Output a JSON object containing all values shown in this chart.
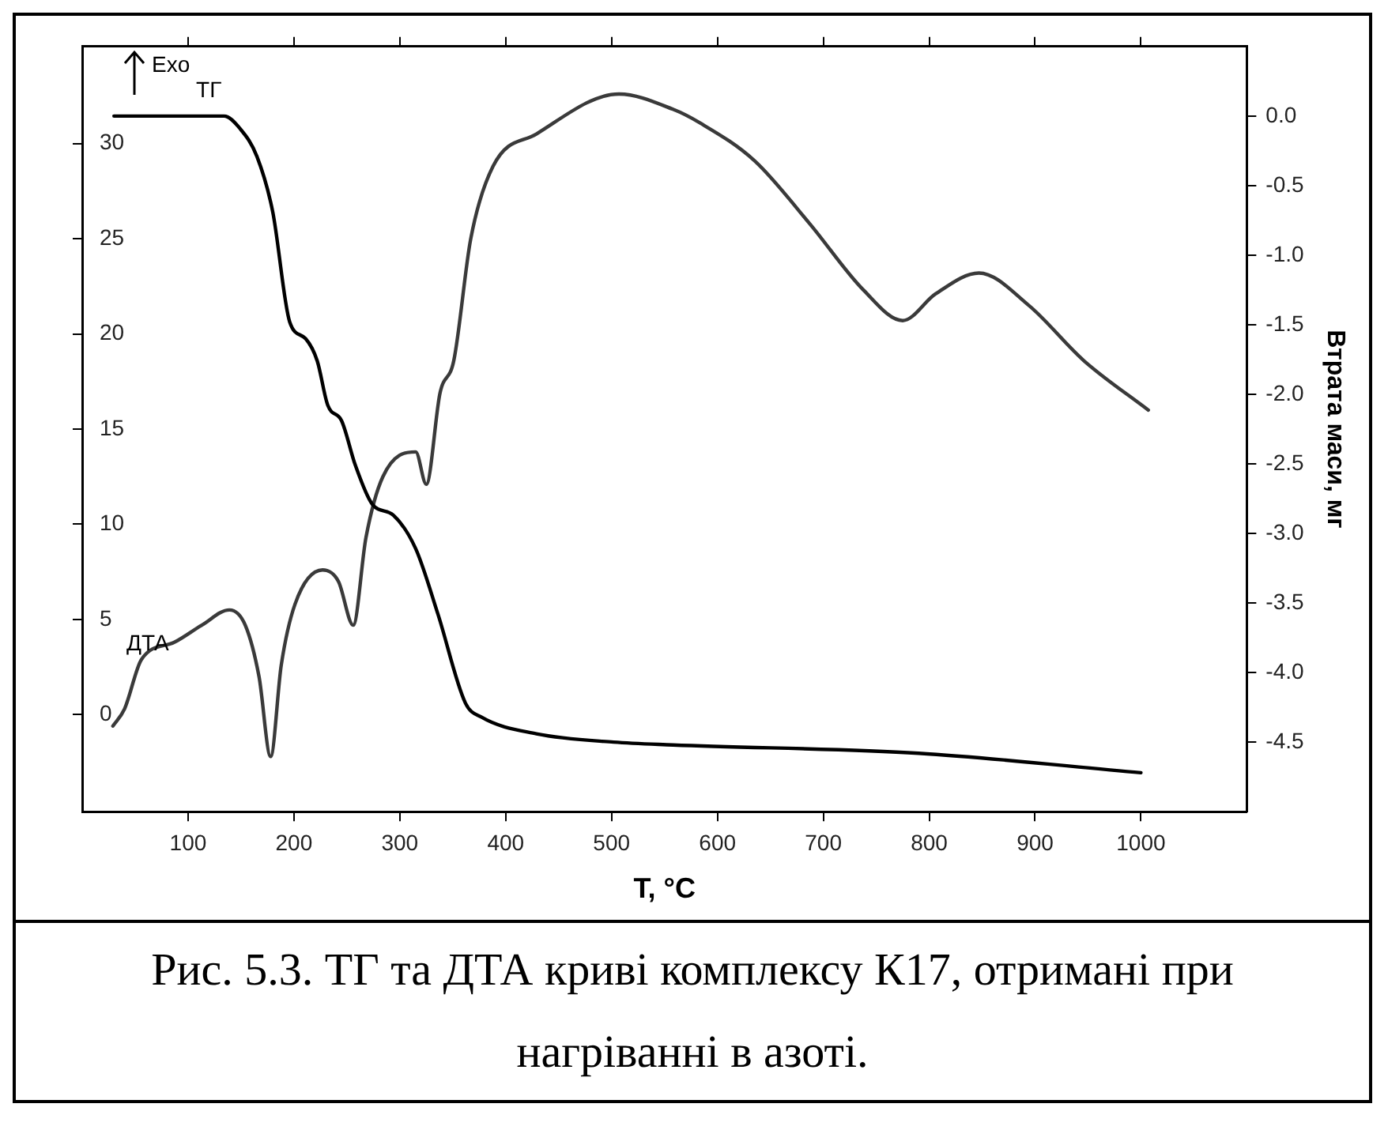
{
  "chart_data": {
    "type": "line",
    "xlabel": "T, °C",
    "y2label": "Втрата маси, мг",
    "xlim": [
      0,
      1100
    ],
    "xticks": [
      100,
      200,
      300,
      400,
      500,
      600,
      700,
      800,
      900,
      1000
    ],
    "ylim": [
      -5.1,
      35.1
    ],
    "yticks": [
      0,
      5,
      10,
      15,
      20,
      25,
      30
    ],
    "y2lim": [
      -5.0,
      0.5
    ],
    "y2ticks": [
      {
        "value": 0,
        "label": "0.0"
      },
      -0.5,
      {
        "value": -1,
        "label": "-1.0"
      },
      -1.5,
      {
        "value": -2,
        "label": "-2.0"
      },
      -2.5,
      {
        "value": -3,
        "label": "-3.0"
      },
      -3.5,
      {
        "value": -4,
        "label": "-4.0"
      },
      -4.5
    ],
    "grid": false,
    "legend": false,
    "marker": "none",
    "line_style": "solid",
    "series": [
      {
        "name": "ТГ",
        "color": "#000000",
        "axis": "y2",
        "x": [
          30,
          134,
          149,
          165,
          180,
          196,
          211,
          222,
          232,
          245,
          258,
          274,
          294,
          315,
          336,
          362,
          377,
          429,
          502,
          558,
          790,
          1000
        ],
        "values": [
          0.0,
          0.0,
          -0.09,
          -0.29,
          -0.69,
          -1.48,
          -1.6,
          -1.76,
          -2.08,
          -2.19,
          -2.51,
          -2.79,
          -2.87,
          -3.11,
          -3.58,
          -4.22,
          -4.32,
          -4.44,
          -4.5,
          -4.52,
          -4.58,
          -4.72
        ]
      },
      {
        "name": "ДТА",
        "color": "#3a3a3a",
        "axis": "y",
        "x": [
          29,
          40,
          56,
          87,
          113,
          139,
          154,
          167,
          178,
          188,
          201,
          227,
          242,
          256,
          268,
          284,
          315,
          325,
          338,
          351,
          367,
          388,
          429,
          507,
          558,
          583,
          635,
          687,
          738,
          775,
          806,
          847,
          894,
          946,
          1007
        ],
        "values": [
          -0.6,
          0.3,
          2.9,
          3.8,
          4.7,
          5.5,
          4.7,
          2.0,
          -2.2,
          2.6,
          5.8,
          7.6,
          7.0,
          4.7,
          9.3,
          12.5,
          13.8,
          12.1,
          16.9,
          18.6,
          25.0,
          28.8,
          30.5,
          32.6,
          31.8,
          31.1,
          29.1,
          25.8,
          22.3,
          20.7,
          22.1,
          23.2,
          21.5,
          18.6,
          16.0
        ]
      }
    ],
    "annotations": [
      "Exo",
      "Рис. 5.3. ТГ та ДТА криві комплексу К17, отримані при нагріванні в азоті."
    ]
  }
}
